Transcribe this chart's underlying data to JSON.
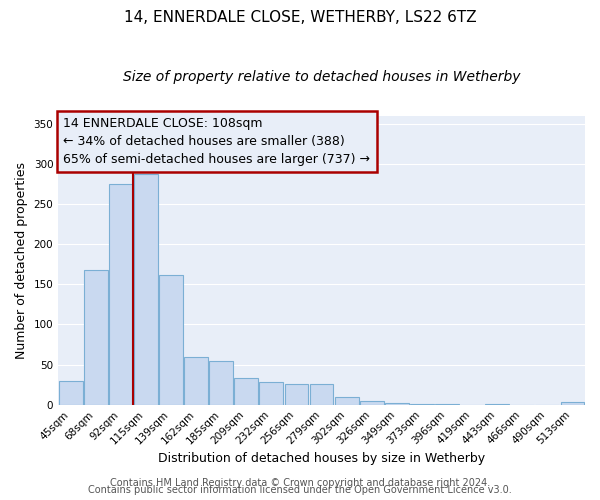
{
  "title": "14, ENNERDALE CLOSE, WETHERBY, LS22 6TZ",
  "subtitle": "Size of property relative to detached houses in Wetherby",
  "xlabel": "Distribution of detached houses by size in Wetherby",
  "ylabel": "Number of detached properties",
  "bar_labels": [
    "45sqm",
    "68sqm",
    "92sqm",
    "115sqm",
    "139sqm",
    "162sqm",
    "185sqm",
    "209sqm",
    "232sqm",
    "256sqm",
    "279sqm",
    "302sqm",
    "326sqm",
    "349sqm",
    "373sqm",
    "396sqm",
    "419sqm",
    "443sqm",
    "466sqm",
    "490sqm",
    "513sqm"
  ],
  "bar_values": [
    29,
    168,
    275,
    288,
    162,
    59,
    54,
    33,
    28,
    26,
    26,
    10,
    5,
    2,
    1,
    1,
    0,
    1,
    0,
    0,
    3
  ],
  "bar_color": "#c9d9f0",
  "bar_edge_color": "#7bafd4",
  "vline_x_idx": 2.5,
  "vline_color": "#aa0000",
  "ylim": [
    0,
    360
  ],
  "yticks": [
    0,
    50,
    100,
    150,
    200,
    250,
    300,
    350
  ],
  "annotation_title": "14 ENNERDALE CLOSE: 108sqm",
  "annotation_line1": "← 34% of detached houses are smaller (388)",
  "annotation_line2": "65% of semi-detached houses are larger (737) →",
  "box_color": "#aa0000",
  "footer1": "Contains HM Land Registry data © Crown copyright and database right 2024.",
  "footer2": "Contains public sector information licensed under the Open Government Licence v3.0.",
  "plot_bg_color": "#e8eef8",
  "fig_bg_color": "#ffffff",
  "grid_color": "#ffffff",
  "title_fontsize": 11,
  "subtitle_fontsize": 10,
  "axis_label_fontsize": 9,
  "tick_fontsize": 7.5,
  "annotation_fontsize": 9,
  "footer_fontsize": 7
}
